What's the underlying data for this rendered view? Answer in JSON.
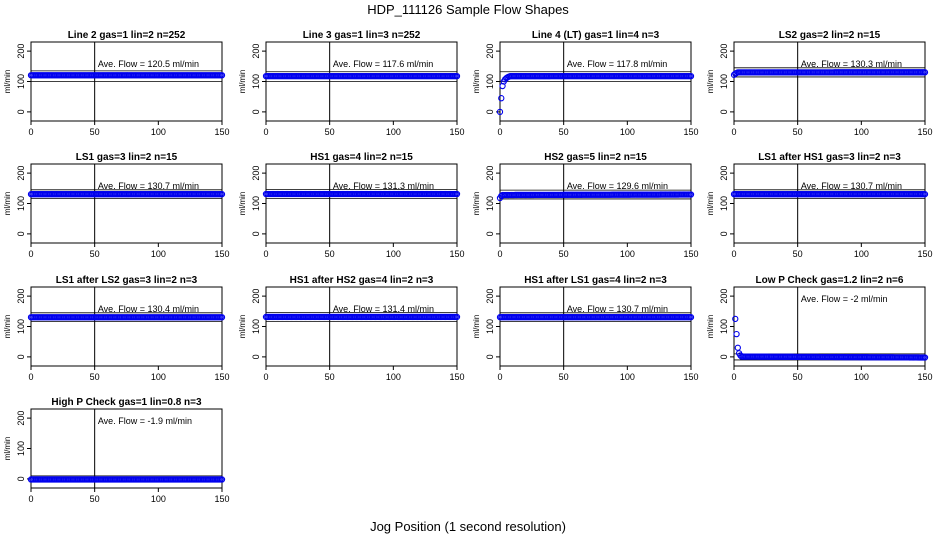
{
  "figure": {
    "title": "HDP_111126  Sample Flow Shapes",
    "xlabel": "Jog Position (1 second resolution)"
  },
  "colors": {
    "points": "#0000ee",
    "axes": "#000000",
    "background": "#ffffff"
  },
  "chart_data": [
    {
      "type": "scatter",
      "title": "Line 2 gas=1 lin=2 n=252",
      "ylabel": "ml/min",
      "annotation": "Ave. Flow =  120.5  ml/min",
      "xlim": [
        0,
        150
      ],
      "ylim": [
        -30,
        230
      ],
      "xticks": [
        0,
        50,
        100,
        150
      ],
      "yticks": [
        0,
        100,
        200
      ],
      "vline": 50,
      "hlines": [
        100,
        135
      ],
      "series": [
        {
          "x": [
            0,
            150
          ],
          "y": [
            120.5,
            120.5
          ]
        }
      ]
    },
    {
      "type": "scatter",
      "title": "Line 3 gas=1 lin=3 n=252",
      "ylabel": "ml/min",
      "annotation": "Ave. Flow =  117.6  ml/min",
      "xlim": [
        0,
        150
      ],
      "ylim": [
        -30,
        230
      ],
      "xticks": [
        0,
        50,
        100,
        150
      ],
      "yticks": [
        0,
        100,
        200
      ],
      "vline": 50,
      "hlines": [
        100,
        132
      ],
      "series": [
        {
          "x": [
            0,
            150
          ],
          "y": [
            117.6,
            117.6
          ]
        }
      ]
    },
    {
      "type": "scatter",
      "title": "Line 4 (LT) gas=1 lin=4 n=3",
      "ylabel": "ml/min",
      "annotation": "Ave. Flow =  117.8  ml/min",
      "xlim": [
        0,
        150
      ],
      "ylim": [
        -30,
        230
      ],
      "xticks": [
        0,
        50,
        100,
        150
      ],
      "yticks": [
        0,
        100,
        200
      ],
      "vline": 50,
      "hlines": [
        100,
        132
      ],
      "series": [
        {
          "x": [
            0,
            1,
            2,
            3,
            4,
            5,
            6,
            7,
            8,
            150
          ],
          "y": [
            0,
            45,
            85,
            100,
            107,
            111,
            114,
            116,
            117.5,
            117.8
          ]
        }
      ]
    },
    {
      "type": "scatter",
      "title": "LS2 gas=2 lin=2 n=15",
      "ylabel": "ml/min",
      "annotation": "Ave. Flow =  130.3  ml/min",
      "xlim": [
        0,
        150
      ],
      "ylim": [
        -30,
        230
      ],
      "xticks": [
        0,
        50,
        100,
        150
      ],
      "yticks": [
        0,
        100,
        200
      ],
      "vline": 50,
      "hlines": [
        115,
        145
      ],
      "series": [
        {
          "x": [
            0,
            1,
            2,
            3,
            150
          ],
          "y": [
            122,
            126,
            128,
            130,
            130.3
          ]
        }
      ]
    },
    {
      "type": "scatter",
      "title": "LS1 gas=3 lin=2 n=15",
      "ylabel": "ml/min",
      "annotation": "Ave. Flow =  130.7  ml/min",
      "xlim": [
        0,
        150
      ],
      "ylim": [
        -30,
        230
      ],
      "xticks": [
        0,
        50,
        100,
        150
      ],
      "yticks": [
        0,
        100,
        200
      ],
      "vline": 50,
      "hlines": [
        116,
        145
      ],
      "series": [
        {
          "x": [
            0,
            150
          ],
          "y": [
            130.7,
            130.7
          ]
        }
      ]
    },
    {
      "type": "scatter",
      "title": "HS1 gas=4 lin=2 n=15",
      "ylabel": "ml/min",
      "annotation": "Ave. Flow =  131.3  ml/min",
      "xlim": [
        0,
        150
      ],
      "ylim": [
        -30,
        230
      ],
      "xticks": [
        0,
        50,
        100,
        150
      ],
      "yticks": [
        0,
        100,
        200
      ],
      "vline": 50,
      "hlines": [
        116,
        146
      ],
      "series": [
        {
          "x": [
            0,
            150
          ],
          "y": [
            131.3,
            131.3
          ]
        }
      ]
    },
    {
      "type": "scatter",
      "title": "HS2 gas=5 lin=2 n=15",
      "ylabel": "ml/min",
      "annotation": "Ave. Flow =  129.6  ml/min",
      "xlim": [
        0,
        150
      ],
      "ylim": [
        -30,
        230
      ],
      "xticks": [
        0,
        50,
        100,
        150
      ],
      "yticks": [
        0,
        100,
        200
      ],
      "vline": 50,
      "hlines": [
        115,
        144
      ],
      "series": [
        {
          "x": [
            0,
            1,
            2,
            150
          ],
          "y": [
            118,
            125,
            128,
            129.6
          ]
        }
      ]
    },
    {
      "type": "scatter",
      "title": "LS1 after HS1 gas=3 lin=2 n=3",
      "ylabel": "ml/min",
      "annotation": "Ave. Flow =  130.7  ml/min",
      "xlim": [
        0,
        150
      ],
      "ylim": [
        -30,
        230
      ],
      "xticks": [
        0,
        50,
        100,
        150
      ],
      "yticks": [
        0,
        100,
        200
      ],
      "vline": 50,
      "hlines": [
        116,
        145
      ],
      "series": [
        {
          "x": [
            0,
            150
          ],
          "y": [
            130.7,
            130.7
          ]
        }
      ]
    },
    {
      "type": "scatter",
      "title": "LS1 after LS2 gas=3 lin=2 n=3",
      "ylabel": "ml/min",
      "annotation": "Ave. Flow =  130.4  ml/min",
      "xlim": [
        0,
        150
      ],
      "ylim": [
        -30,
        230
      ],
      "xticks": [
        0,
        50,
        100,
        150
      ],
      "yticks": [
        0,
        100,
        200
      ],
      "vline": 50,
      "hlines": [
        116,
        145
      ],
      "series": [
        {
          "x": [
            0,
            150
          ],
          "y": [
            130.4,
            130.4
          ]
        }
      ]
    },
    {
      "type": "scatter",
      "title": "HS1 after HS2 gas=4 lin=2 n=3",
      "ylabel": "ml/min",
      "annotation": "Ave. Flow =  131.4  ml/min",
      "xlim": [
        0,
        150
      ],
      "ylim": [
        -30,
        230
      ],
      "xticks": [
        0,
        50,
        100,
        150
      ],
      "yticks": [
        0,
        100,
        200
      ],
      "vline": 50,
      "hlines": [
        116,
        146
      ],
      "series": [
        {
          "x": [
            0,
            150
          ],
          "y": [
            131.4,
            131.4
          ]
        }
      ]
    },
    {
      "type": "scatter",
      "title": "HS1 after LS1 gas=4 lin=2 n=3",
      "ylabel": "ml/min",
      "annotation": "Ave. Flow =  130.7  ml/min",
      "xlim": [
        0,
        150
      ],
      "ylim": [
        -30,
        230
      ],
      "xticks": [
        0,
        50,
        100,
        150
      ],
      "yticks": [
        0,
        100,
        200
      ],
      "vline": 50,
      "hlines": [
        116,
        145
      ],
      "series": [
        {
          "x": [
            0,
            150
          ],
          "y": [
            130.7,
            130.7
          ]
        }
      ]
    },
    {
      "type": "scatter",
      "title": "Low P Check gas=1.2 lin=2 n=6",
      "ylabel": "ml/min",
      "annotation": "Ave. Flow =  -2  ml/min",
      "xlim": [
        0,
        150
      ],
      "ylim": [
        -30,
        230
      ],
      "xticks": [
        0,
        50,
        100,
        150
      ],
      "yticks": [
        0,
        100,
        200
      ],
      "vline": 50,
      "hlines": [
        -10,
        10
      ],
      "series": [
        {
          "x": [
            1,
            2,
            3,
            4,
            5,
            6,
            150
          ],
          "y": [
            125,
            75,
            30,
            12,
            5,
            1,
            -2
          ]
        }
      ]
    },
    {
      "type": "scatter",
      "title": "High P Check gas=1 lin=0.8 n=3",
      "ylabel": "ml/min",
      "annotation": "Ave. Flow =  -1.9  ml/min",
      "xlim": [
        0,
        150
      ],
      "ylim": [
        -30,
        230
      ],
      "xticks": [
        0,
        50,
        100,
        150
      ],
      "yticks": [
        0,
        100,
        200
      ],
      "vline": 50,
      "hlines": [
        -10,
        10
      ],
      "series": [
        {
          "x": [
            0,
            150
          ],
          "y": [
            -1.9,
            -1.9
          ]
        }
      ]
    }
  ]
}
